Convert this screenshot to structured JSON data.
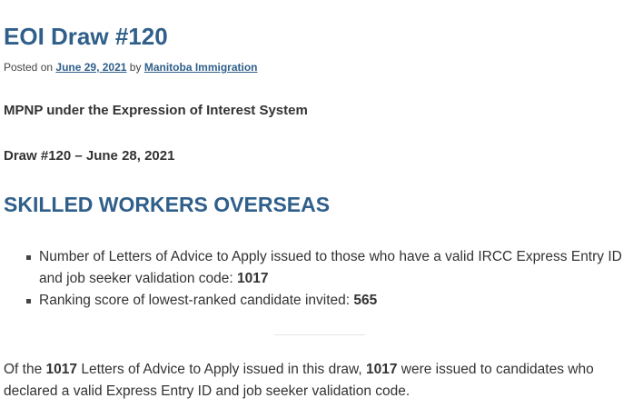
{
  "post": {
    "title": "EOI Draw #120",
    "meta": {
      "posted_on_label": "Posted on",
      "date": "June 29, 2021",
      "by_label": "by",
      "author": "Manitoba Immigration"
    },
    "intro_line_1": "MPNP under the Expression of Interest System",
    "intro_line_2": "Draw #120 – June 28, 2021",
    "section_heading": "SKILLED WORKERS OVERSEAS",
    "stats": [
      {
        "text": "Number of Letters of Advice to Apply issued to those who have a valid IRCC Express Entry ID and job seeker validation code:",
        "value": "1017"
      },
      {
        "text": "Ranking score of lowest-ranked candidate invited:",
        "value": "565"
      }
    ],
    "summary": {
      "part_1": "Of the",
      "count_total": "1017",
      "part_2": "Letters of Advice to Apply issued in this draw,",
      "count_ee": "1017",
      "part_3": "were issued to candidates who declared a valid Express Entry ID and job seeker validation code."
    }
  }
}
